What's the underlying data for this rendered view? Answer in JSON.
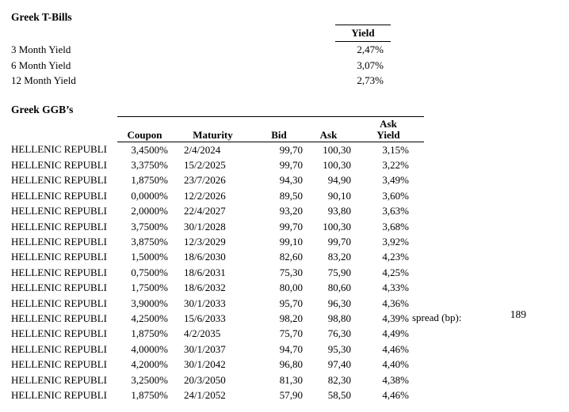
{
  "tbills": {
    "title": "Greek T-Bills",
    "yield_header": "Yield",
    "rows": [
      {
        "label": "3 Month Yield",
        "value": "2,47%"
      },
      {
        "label": "6 Month Yield",
        "value": "3,07%"
      },
      {
        "label": "12 Month Yield",
        "value": "2,73%"
      }
    ]
  },
  "ggbs": {
    "title": "Greek GGB’s",
    "columns": {
      "coupon": "Coupon",
      "maturity": "Maturity",
      "bid": "Bid",
      "ask": "Ask",
      "ask_yield_line1": "Ask",
      "ask_yield_line2": "Yield"
    },
    "rows": [
      {
        "name": "HELLENIC REPUBLI",
        "coupon": "3,4500%",
        "maturity": "2/4/2024",
        "bid": "99,70",
        "ask": "100,30",
        "ask_yield": "3,15%"
      },
      {
        "name": "HELLENIC REPUBLI",
        "coupon": "3,3750%",
        "maturity": "15/2/2025",
        "bid": "99,70",
        "ask": "100,30",
        "ask_yield": "3,22%"
      },
      {
        "name": "HELLENIC REPUBLI",
        "coupon": "1,8750%",
        "maturity": "23/7/2026",
        "bid": "94,30",
        "ask": "94,90",
        "ask_yield": "3,49%"
      },
      {
        "name": "HELLENIC REPUBLI",
        "coupon": "0,0000%",
        "maturity": "12/2/2026",
        "bid": "89,50",
        "ask": "90,10",
        "ask_yield": "3,60%"
      },
      {
        "name": "HELLENIC REPUBLI",
        "coupon": "2,0000%",
        "maturity": "22/4/2027",
        "bid": "93,20",
        "ask": "93,80",
        "ask_yield": "3,63%"
      },
      {
        "name": "HELLENIC REPUBLI",
        "coupon": "3,7500%",
        "maturity": "30/1/2028",
        "bid": "99,70",
        "ask": "100,30",
        "ask_yield": "3,68%"
      },
      {
        "name": "HELLENIC REPUBLI",
        "coupon": "3,8750%",
        "maturity": "12/3/2029",
        "bid": "99,10",
        "ask": "99,70",
        "ask_yield": "3,92%"
      },
      {
        "name": "HELLENIC REPUBLI",
        "coupon": "1,5000%",
        "maturity": "18/6/2030",
        "bid": "82,60",
        "ask": "83,20",
        "ask_yield": "4,23%"
      },
      {
        "name": "HELLENIC REPUBLI",
        "coupon": "0,7500%",
        "maturity": "18/6/2031",
        "bid": "75,30",
        "ask": "75,90",
        "ask_yield": "4,25%"
      },
      {
        "name": "HELLENIC REPUBLI",
        "coupon": "1,7500%",
        "maturity": "18/6/2032",
        "bid": "80,00",
        "ask": "80,60",
        "ask_yield": "4,33%"
      },
      {
        "name": "HELLENIC REPUBLI",
        "coupon": "3,9000%",
        "maturity": "30/1/2033",
        "bid": "95,70",
        "ask": "96,30",
        "ask_yield": "4,36%"
      },
      {
        "name": "HELLENIC REPUBLI",
        "coupon": "4,2500%",
        "maturity": "15/6/2033",
        "bid": "98,20",
        "ask": "98,80",
        "ask_yield": "4,39%"
      },
      {
        "name": "HELLENIC REPUBLI",
        "coupon": "1,8750%",
        "maturity": "4/2/2035",
        "bid": "75,70",
        "ask": "76,30",
        "ask_yield": "4,49%"
      },
      {
        "name": "HELLENIC REPUBLI",
        "coupon": "4,0000%",
        "maturity": "30/1/2037",
        "bid": "94,70",
        "ask": "95,30",
        "ask_yield": "4,46%"
      },
      {
        "name": "HELLENIC REPUBLI",
        "coupon": "4,2000%",
        "maturity": "30/1/2042",
        "bid": "96,80",
        "ask": "97,40",
        "ask_yield": "4,40%"
      },
      {
        "name": "HELLENIC REPUBLI",
        "coupon": "3,2500%",
        "maturity": "20/3/2050",
        "bid": "81,30",
        "ask": "82,30",
        "ask_yield": "4,38%"
      },
      {
        "name": "HELLENIC REPUBLI",
        "coupon": "1,8750%",
        "maturity": "24/1/2052",
        "bid": "57,90",
        "ask": "58,50",
        "ask_yield": "4,46%"
      }
    ]
  },
  "spread": {
    "label": "spread (bp):",
    "value": "189"
  },
  "colors": {
    "text": "#000000",
    "background": "#ffffff",
    "rule": "#000000"
  }
}
